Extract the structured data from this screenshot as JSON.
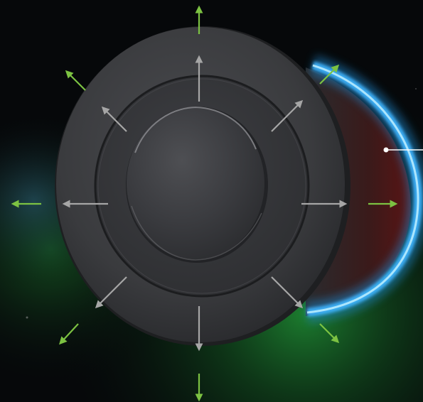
{
  "scene": {
    "subject": "puck-device-top-view",
    "accent_colors": {
      "green_arrow": "#7cc242",
      "gray_arrow": "#a6a6a6",
      "blue_glow": "#3fb5ff",
      "green_glow": "#1c7a2c",
      "body": "#3a3b3e",
      "background": "#06080a"
    },
    "outer_arrows_color_name": "green",
    "inner_arrows_color_name": "gray",
    "outer_arrow_count": 8,
    "inner_arrow_count": 8,
    "callout_marker": "white-dot-line"
  }
}
